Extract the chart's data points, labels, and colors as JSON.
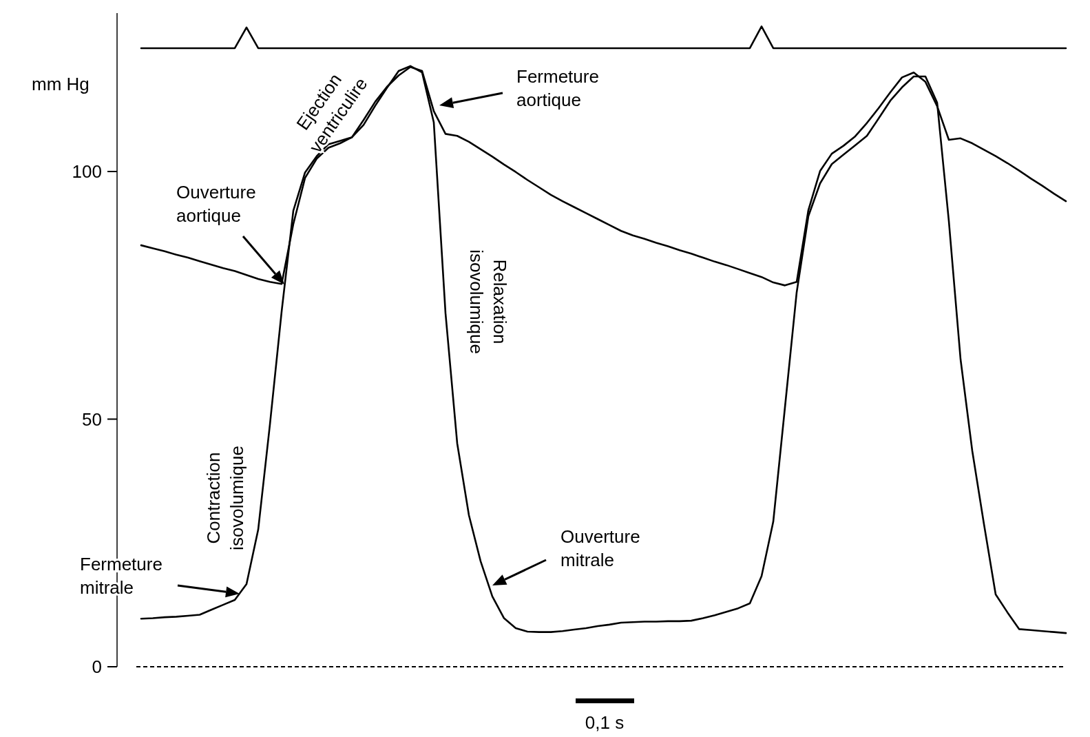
{
  "chart_data": {
    "type": "line",
    "ylabel": "mm Hg",
    "ylim": [
      0,
      132
    ],
    "yticks": [
      0,
      50,
      100
    ],
    "tick_labels": "y",
    "grid": false,
    "marker": "none",
    "line_style": "solid",
    "categories": [
      null,
      null,
      null,
      null,
      null,
      null,
      null,
      null,
      null,
      null,
      null,
      null,
      null,
      null,
      null,
      null,
      null,
      null,
      null,
      null,
      null,
      null,
      null,
      null,
      null,
      null,
      null,
      null,
      null,
      null,
      null,
      null,
      null,
      null,
      null,
      null,
      null,
      null,
      null,
      null,
      null,
      null,
      null,
      null,
      null,
      null,
      null,
      null,
      null,
      null,
      null,
      null,
      null,
      null,
      null,
      null,
      null,
      null,
      null,
      null,
      null,
      null,
      null,
      null,
      null,
      null,
      null,
      null,
      null,
      null,
      null,
      null,
      null,
      null,
      null,
      null,
      null,
      null,
      null,
      null
    ],
    "series": [
      {
        "color": "#000000",
        "values": [
          124.9,
          124.9,
          124.9,
          124.9,
          124.9,
          124.9,
          124.9,
          124.9,
          124.9,
          129.1,
          124.9,
          124.9,
          124.9,
          124.9,
          124.9,
          124.9,
          124.9,
          124.9,
          124.9,
          124.9,
          124.9,
          124.9,
          124.9,
          124.9,
          124.9,
          124.9,
          124.9,
          124.9,
          124.9,
          124.9,
          124.9,
          124.9,
          124.9,
          124.9,
          124.9,
          124.9,
          124.9,
          124.9,
          124.9,
          124.9,
          124.9,
          124.9,
          124.9,
          124.9,
          124.9,
          124.9,
          124.9,
          124.9,
          124.9,
          124.9,
          124.9,
          124.9,
          124.9,
          129.3,
          124.9,
          124.9,
          124.9,
          124.9,
          124.9,
          124.9,
          124.9,
          124.9,
          124.9,
          124.9,
          124.9,
          124.9,
          124.9,
          124.9,
          124.9,
          124.9,
          124.9,
          124.9,
          124.9,
          124.9,
          124.9,
          124.9,
          124.9,
          124.9,
          124.9,
          124.9
        ]
      },
      {
        "color": "#000000",
        "values": [
          85.1,
          84.5,
          83.9,
          83.2,
          82.6,
          81.9,
          81.2,
          80.5,
          79.9,
          79.1,
          78.3,
          77.7,
          77.3,
          89.4,
          98.7,
          102.6,
          104.8,
          105.7,
          106.9,
          110.4,
          114.1,
          117.1,
          119.4,
          121.1,
          120.3,
          112.2,
          107.6,
          107.2,
          106,
          104.5,
          103,
          101.4,
          99.9,
          98.3,
          96.8,
          95.3,
          94,
          92.8,
          91.6,
          90.4,
          89.2,
          88,
          87.1,
          86.4,
          85.6,
          84.9,
          84.1,
          83.4,
          82.6,
          81.8,
          81.1,
          80.3,
          79.5,
          78.7,
          77.6,
          77,
          77.7,
          92.2,
          100.1,
          103.6,
          105.2,
          107.1,
          109.8,
          112.8,
          116,
          119,
          120,
          118.1,
          113.2,
          106.4,
          106.7,
          105.7,
          104.4,
          103.1,
          101.7,
          100.2,
          98.6,
          97.1,
          95.5,
          94
        ]
      },
      {
        "color": "#000000",
        "values": [
          9.7,
          9.8,
          10,
          10.1,
          10.3,
          10.5,
          11.5,
          12.5,
          13.5,
          16.7,
          27.7,
          48.9,
          71.7,
          92.1,
          99.8,
          103.1,
          105.5,
          106.2,
          106.9,
          109.4,
          113.3,
          116.9,
          120.3,
          121.3,
          120,
          109.9,
          71.4,
          45.1,
          30.6,
          21.3,
          14.2,
          9.8,
          7.8,
          7.1,
          7,
          7,
          7.2,
          7.5,
          7.8,
          8.2,
          8.5,
          8.9,
          9,
          9.1,
          9.1,
          9.2,
          9.2,
          9.3,
          9.8,
          10.4,
          11.1,
          11.8,
          12.8,
          18.3,
          29.3,
          52.4,
          75.6,
          91,
          97.6,
          101.5,
          103.4,
          105.3,
          107.2,
          110.7,
          114.3,
          117,
          119.2,
          119.2,
          113.9,
          90,
          62.1,
          43.6,
          28.8,
          14.6,
          11,
          7.6,
          7.4,
          7.2,
          7,
          6.8
        ]
      }
    ],
    "ref_lines": [
      {
        "axis": "y",
        "value": 0,
        "color": "#000000",
        "line_style": "dashed"
      }
    ],
    "annotations": [
      "Ejection ventriculire",
      "Ouverture aortique",
      "Fermeture aortique",
      "Relaxation isovolumique",
      "Contraction isovolumique",
      "Fermeture mitrale",
      "Ouverture mitrale",
      "0,1 s"
    ]
  }
}
